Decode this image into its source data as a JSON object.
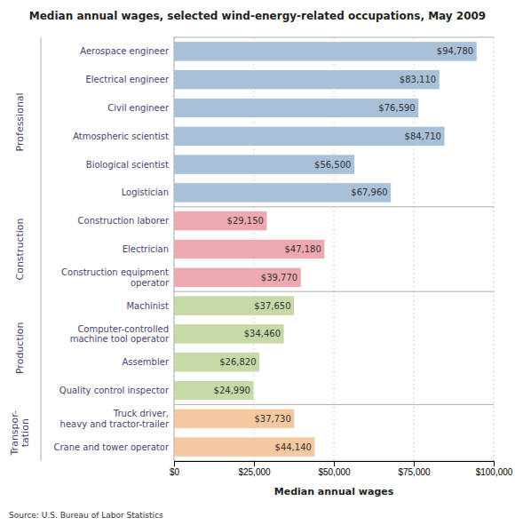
{
  "chart_data": {
    "type": "bar",
    "orientation": "horizontal",
    "title": "Median annual wages, selected wind-energy-related occupations, May 2009",
    "xlabel": "Median annual wages",
    "source": "Source: U.S. Bureau of Labor Statistics",
    "categories": [
      "Crane and tower operator",
      "Truck driver,\nheavy and tractor-trailer",
      "Quality control inspector",
      "Assembler",
      "Computer-controlled\nmachine tool operator",
      "Machinist",
      "Construction equipment\noperator",
      "Electrician",
      "Construction laborer",
      "Logistician",
      "Biological scientist",
      "Atmospheric scientist",
      "Civil engineer",
      "Electrical engineer",
      "Aerospace engineer"
    ],
    "values": [
      44140,
      37730,
      24990,
      26820,
      34460,
      37650,
      39770,
      47180,
      29150,
      67960,
      56500,
      84710,
      76590,
      83110,
      94780
    ],
    "value_labels": [
      "$44,140",
      "$37,730",
      "$24,990",
      "$26,820",
      "$34,460",
      "$37,650",
      "$39,770",
      "$47,180",
      "$29,150",
      "$67,960",
      "$56,500",
      "$84,710",
      "$76,590",
      "$83,110",
      "$94,780"
    ],
    "data_labels": true,
    "colors": [
      "#F5C9A0",
      "#F5C9A0",
      "#C8D9A8",
      "#C8D9A8",
      "#C8D9A8",
      "#C8D9A8",
      "#F0A8B0",
      "#F0A8B0",
      "#F0A8B0",
      "#A8C0D8",
      "#A8C0D8",
      "#A8C0D8",
      "#A8C0D8",
      "#A8C0D8",
      "#A8C0D8"
    ],
    "groups": [
      {
        "name": "Transpor-\ntation",
        "count": 2
      },
      {
        "name": "Production",
        "count": 4
      },
      {
        "name": "Construction",
        "count": 3
      },
      {
        "name": "Professional",
        "count": 6
      }
    ],
    "xlim": [
      0,
      100000
    ],
    "xticks": [
      {
        "value": 0,
        "label": "$0"
      },
      {
        "value": 25000,
        "label": "$25,000"
      },
      {
        "value": 50000,
        "label": "$50,000"
      },
      {
        "value": 75000,
        "label": "$75,000"
      },
      {
        "value": 100000,
        "label": "$100,000"
      }
    ],
    "grid": true
  }
}
